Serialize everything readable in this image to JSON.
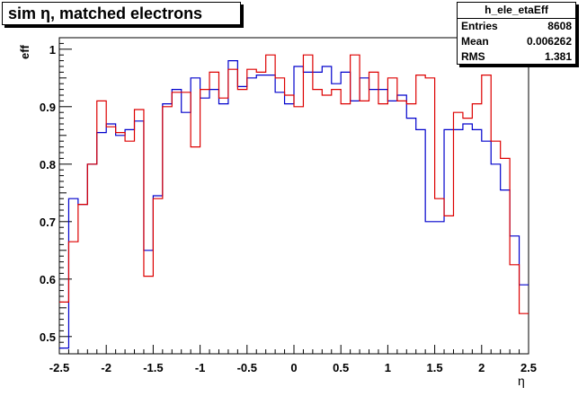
{
  "title": "sim η,  matched electrons",
  "stats": {
    "name": "h_ele_etaEff",
    "rows": [
      {
        "label": "Entries",
        "value": "8608"
      },
      {
        "label": "Mean",
        "value": "0.006262"
      },
      {
        "label": "RMS",
        "value": "1.381"
      }
    ]
  },
  "chart_data": {
    "type": "line",
    "title": "sim η,  matched electrons",
    "xlabel": "η",
    "ylabel": "eff",
    "xlim": [
      -2.5,
      2.5
    ],
    "ylim": [
      0.47,
      1.02
    ],
    "xticks": [
      -2.5,
      -2,
      -1.5,
      -1,
      -0.5,
      0,
      0.5,
      1,
      1.5,
      2,
      2.5
    ],
    "yticks": [
      0.5,
      0.6,
      0.7,
      0.8,
      0.9,
      1
    ],
    "bin_edges": [
      -2.5,
      -2.4,
      -2.3,
      -2.2,
      -2.1,
      -2.0,
      -1.9,
      -1.8,
      -1.7,
      -1.6,
      -1.5,
      -1.4,
      -1.3,
      -1.2,
      -1.1,
      -1.0,
      -0.9,
      -0.8,
      -0.7,
      -0.6,
      -0.5,
      -0.4,
      -0.3,
      -0.2,
      -0.1,
      0.0,
      0.1,
      0.2,
      0.3,
      0.4,
      0.5,
      0.6,
      0.7,
      0.8,
      0.9,
      1.0,
      1.1,
      1.2,
      1.3,
      1.4,
      1.5,
      1.6,
      1.7,
      1.8,
      1.9,
      2.0,
      2.1,
      2.2,
      2.3,
      2.4,
      2.5
    ],
    "series": [
      {
        "color": "#0000cc",
        "values": [
          0.48,
          0.74,
          0.73,
          0.8,
          0.855,
          0.87,
          0.85,
          0.86,
          0.875,
          0.65,
          0.745,
          0.905,
          0.93,
          0.89,
          0.95,
          0.915,
          0.93,
          0.905,
          0.98,
          0.935,
          0.95,
          0.955,
          0.955,
          0.925,
          0.905,
          0.97,
          0.96,
          0.96,
          0.97,
          0.94,
          0.96,
          0.91,
          0.95,
          0.93,
          0.93,
          0.91,
          0.92,
          0.88,
          0.86,
          0.7,
          0.7,
          0.86,
          0.86,
          0.87,
          0.86,
          0.84,
          0.8,
          0.755,
          0.675,
          0.59
        ]
      },
      {
        "color": "#dd0000",
        "values": [
          0.56,
          0.665,
          0.73,
          0.8,
          0.91,
          0.865,
          0.855,
          0.84,
          0.895,
          0.605,
          0.74,
          0.9,
          0.925,
          0.925,
          0.83,
          0.93,
          0.96,
          0.915,
          0.965,
          0.93,
          0.965,
          0.96,
          0.99,
          0.95,
          0.92,
          0.9,
          0.99,
          0.93,
          0.92,
          0.93,
          0.905,
          0.99,
          0.91,
          0.96,
          0.905,
          0.95,
          0.91,
          0.905,
          0.955,
          0.95,
          0.74,
          0.71,
          0.89,
          0.88,
          0.905,
          0.955,
          0.84,
          0.81,
          0.625,
          0.54
        ]
      }
    ]
  }
}
